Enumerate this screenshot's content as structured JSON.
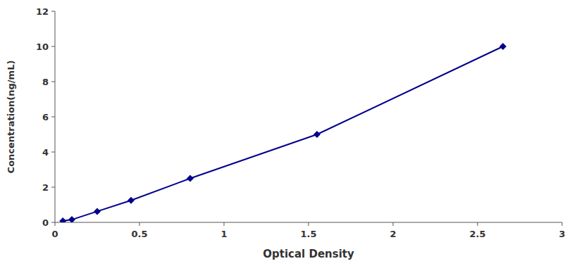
{
  "chart_data": {
    "type": "line",
    "x": [
      0.047,
      0.1,
      0.25,
      0.45,
      0.8,
      1.55,
      2.65
    ],
    "values": [
      0.078,
      0.156,
      0.625,
      1.25,
      2.5,
      5.0,
      10.0
    ],
    "color": "#00008B",
    "marker": "diamond",
    "xlabel": "Optical Density",
    "ylabel": "Concentration(ng/mL)",
    "xlim": [
      0,
      3
    ],
    "ylim": [
      0,
      12
    ],
    "xticks": [
      0,
      0.5,
      1,
      1.5,
      2,
      2.5,
      3
    ],
    "yticks": [
      0,
      2,
      4,
      6,
      8,
      10,
      12
    ],
    "grid": false
  }
}
